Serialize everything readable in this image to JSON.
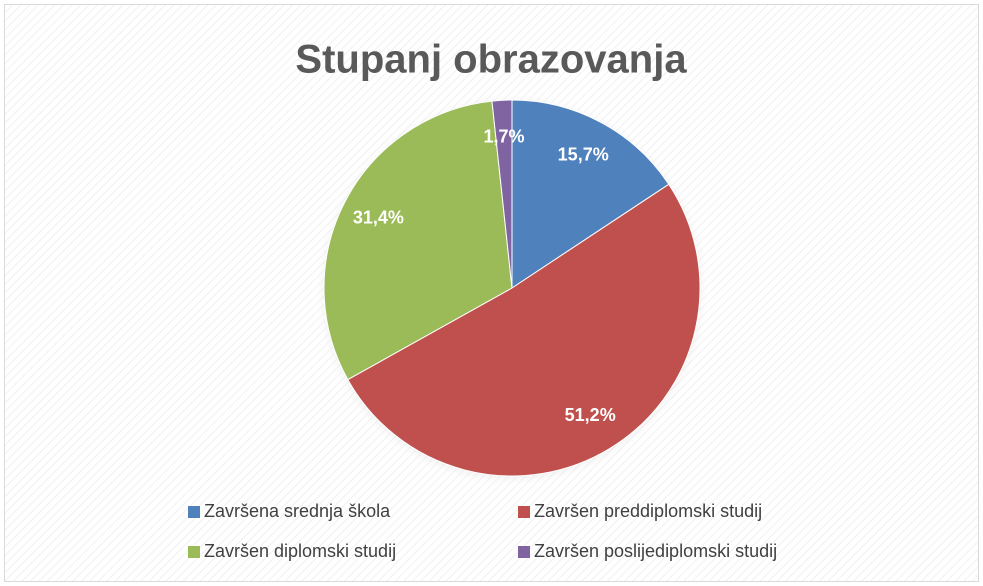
{
  "chart_data": {
    "type": "pie",
    "title": "Stupanj obrazovanja",
    "categories": [
      "Završena srednja škola",
      "Završen preddiplomski studij",
      "Završen diplomski studij",
      "Završen poslijediplomski studij"
    ],
    "values": [
      15.7,
      51.2,
      31.4,
      1.7
    ],
    "value_labels": [
      "15,7%",
      "51,2%",
      "31,4%",
      "1,7%"
    ],
    "colors": [
      "#4f81bd",
      "#c0504d",
      "#9bbb59",
      "#8064a2"
    ],
    "legend": "bottom"
  }
}
